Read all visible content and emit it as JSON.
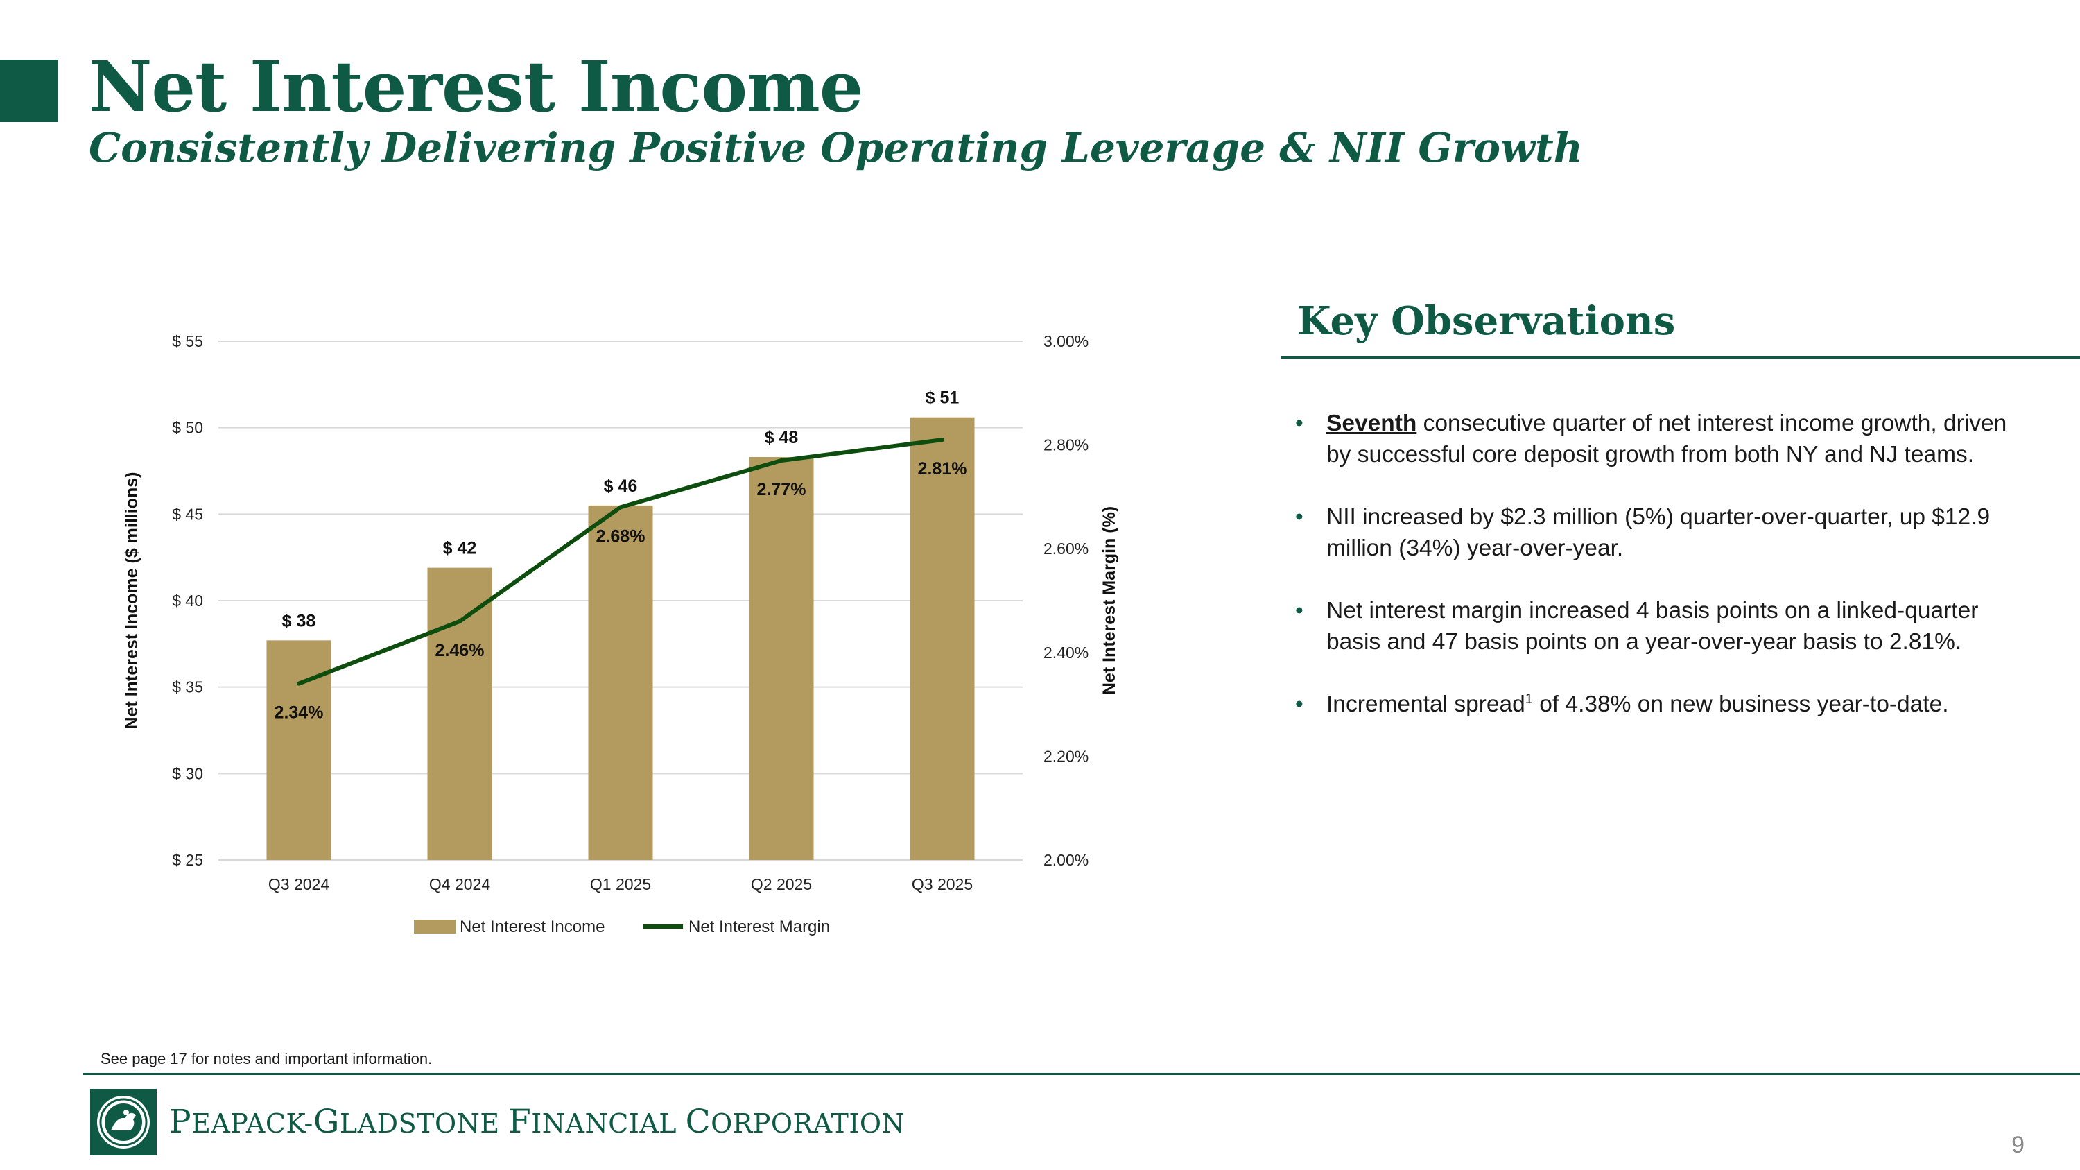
{
  "slide": {
    "title": "Net Interest Income",
    "subtitle": "Consistently Delivering Positive Operating Leverage & NII Growth",
    "page_number": "9",
    "footnote": "See page 17 for notes and important information.",
    "company_name": "Peapack-Gladstone Financial Corporation",
    "company_words": [
      {
        "cap": "P",
        "rest": "EAPACK-"
      },
      {
        "cap": "G",
        "rest": "LADSTONE "
      },
      {
        "cap": "F",
        "rest": "INANCIAL "
      },
      {
        "cap": "C",
        "rest": "ORPORATION"
      }
    ]
  },
  "observations": {
    "title": "Key Observations",
    "items": [
      {
        "lead": "Seventh",
        "text": " consecutive quarter of net interest income growth, driven by successful core deposit growth from both NY and NJ teams."
      },
      {
        "lead": "",
        "text": "NII increased by $2.3 million (5%) quarter-over-quarter, up $12.9 million (34%) year-over-year."
      },
      {
        "lead": "",
        "text": "Net interest margin increased 4 basis points on a linked-quarter basis and 47 basis points on a year-over-year basis to 2.81%."
      },
      {
        "lead": "",
        "text": "Incremental spread",
        "sup": "1",
        "text2": " of 4.38% on new business year-to-date."
      }
    ]
  },
  "colors": {
    "brand_green": "#0f5a44",
    "bar": "#b39a5e",
    "line": "#0d4d0d",
    "grid": "#d9d9d9"
  },
  "chart_data": {
    "type": "bar",
    "categories": [
      "Q3 2024",
      "Q4 2024",
      "Q1 2025",
      "Q2 2025",
      "Q3 2025"
    ],
    "series": [
      {
        "name": "Net Interest Income",
        "type": "bar",
        "axis": "left",
        "values": [
          37.7,
          41.9,
          45.5,
          48.3,
          50.6
        ],
        "labels": [
          "$ 38",
          "$ 42",
          "$ 46",
          "$ 48",
          "$ 51"
        ]
      },
      {
        "name": "Net Interest Margin",
        "type": "line",
        "axis": "right",
        "values": [
          2.34,
          2.46,
          2.68,
          2.77,
          2.81
        ],
        "labels": [
          "2.34%",
          "2.46%",
          "2.68%",
          "2.77%",
          "2.81%"
        ]
      }
    ],
    "ylabel": "Net Interest Income ($ millions)",
    "y2label": "Net Interest Margin (%)",
    "ylim": [
      25,
      55
    ],
    "yticks": [
      55,
      50,
      45,
      40,
      35,
      30,
      25
    ],
    "ytick_labels": [
      "$ 55",
      "$ 50",
      "$ 45",
      "$ 40",
      "$ 35",
      "$ 30",
      "$ 25"
    ],
    "y2lim": [
      2.0,
      3.0
    ],
    "y2ticks": [
      3.0,
      2.8,
      2.6,
      2.4,
      2.2,
      2.0
    ],
    "y2tick_labels": [
      "3.00%",
      "2.80%",
      "2.60%",
      "2.40%",
      "2.20%",
      "2.00%"
    ],
    "grid": true,
    "legend_position": "bottom"
  }
}
